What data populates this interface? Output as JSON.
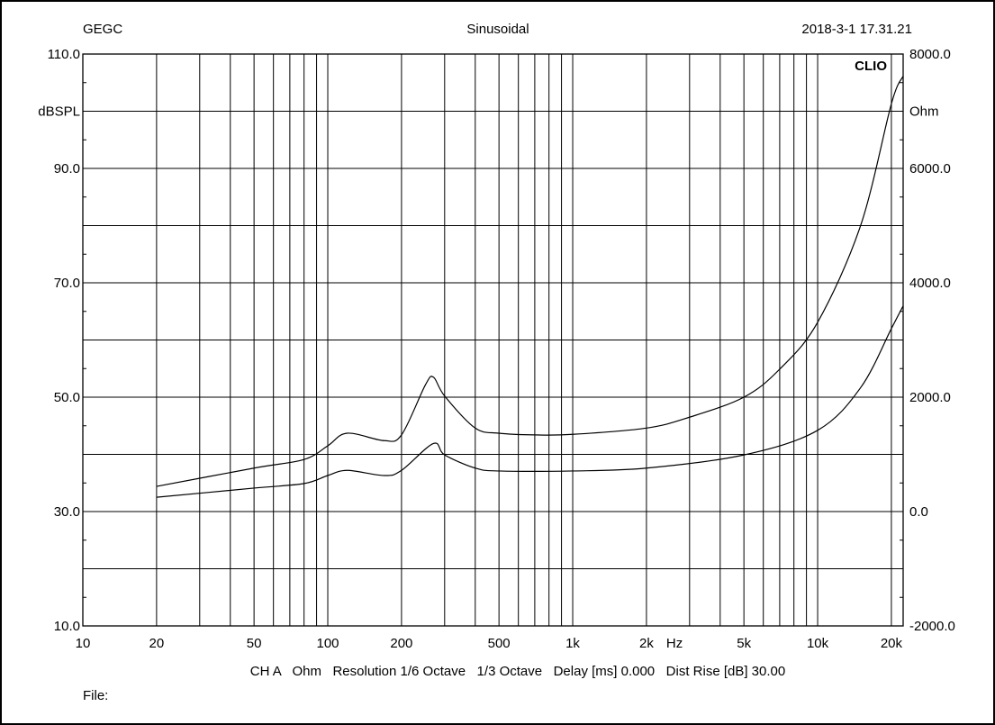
{
  "header": {
    "left": "GEGC",
    "center": "Sinusoidal",
    "right": "2018-3-1 17.31.21"
  },
  "brand": "CLIO",
  "footer": {
    "info": "CH A   Ohm   Resolution 1/6 Octave   1/3 Octave   Delay [ms] 0.000   Dist Rise [dB] 30.00",
    "file_label": "File:"
  },
  "chart_data": {
    "type": "line",
    "title": "Sinusoidal",
    "xlabel": "Hz",
    "ylabel": "dBSPL",
    "y2label": "Ohm",
    "xscale": "log",
    "xlim": [
      10,
      22340
    ],
    "ylim": [
      10,
      110
    ],
    "y2lim": [
      -2000,
      8000
    ],
    "grid": true,
    "x_ticks": [
      {
        "v": 10,
        "l": "10"
      },
      {
        "v": 20,
        "l": "20"
      },
      {
        "v": 50,
        "l": "50"
      },
      {
        "v": 100,
        "l": "100"
      },
      {
        "v": 200,
        "l": "200"
      },
      {
        "v": 500,
        "l": "500"
      },
      {
        "v": 1000,
        "l": "1k"
      },
      {
        "v": 2000,
        "l": "2k"
      },
      {
        "v": 5000,
        "l": "5k"
      },
      {
        "v": 10000,
        "l": "10k"
      },
      {
        "v": 20000,
        "l": "20k"
      }
    ],
    "y_ticks": [
      {
        "v": 110,
        "l": "110.0"
      },
      {
        "v": 100,
        "l": "dBSPL"
      },
      {
        "v": 90,
        "l": "90.0"
      },
      {
        "v": 70,
        "l": "70.0"
      },
      {
        "v": 50,
        "l": "50.0"
      },
      {
        "v": 30,
        "l": "30.0"
      },
      {
        "v": 10,
        "l": "10.0"
      }
    ],
    "y2_ticks": [
      {
        "v": 110,
        "l": "8000.0"
      },
      {
        "v": 100,
        "l": "Ohm"
      },
      {
        "v": 90,
        "l": "6000.0"
      },
      {
        "v": 70,
        "l": "4000.0"
      },
      {
        "v": 50,
        "l": "2000.0"
      },
      {
        "v": 30,
        "l": "0.0"
      },
      {
        "v": 10,
        "l": "-2000.0"
      }
    ],
    "series": [
      {
        "name": "upper curve",
        "x": [
          20,
          50,
          80,
          100,
          120,
          170,
          200,
          250,
          270,
          300,
          400,
          500,
          700,
          1000,
          2000,
          3000,
          5000,
          7000,
          10000,
          15000,
          20000,
          22300
        ],
        "y": [
          34.4,
          37.6,
          39.1,
          41.5,
          43.7,
          42.4,
          43.4,
          52.1,
          53.5,
          50.2,
          44.6,
          43.7,
          43.4,
          43.5,
          44.6,
          46.5,
          50.0,
          54.9,
          63.1,
          80.1,
          101.3,
          106.1
        ]
      },
      {
        "name": "lower curve",
        "x": [
          20,
          50,
          80,
          100,
          120,
          170,
          200,
          270,
          300,
          400,
          500,
          1000,
          2000,
          5000,
          10000,
          15000,
          20000,
          22300
        ],
        "y": [
          32.5,
          34.1,
          34.9,
          36.3,
          37.2,
          36.3,
          37.2,
          41.9,
          39.9,
          37.6,
          37.1,
          37.1,
          37.6,
          39.9,
          44.2,
          51.7,
          62.0,
          65.9
        ]
      }
    ]
  }
}
